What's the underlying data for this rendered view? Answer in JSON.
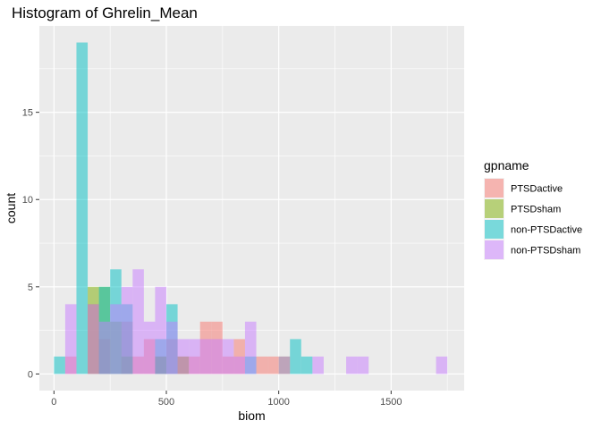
{
  "chart_data": {
    "type": "bar",
    "subtype": "overlapping-histogram",
    "title": "Histogram of Ghrelin_Mean",
    "xlabel": "biom",
    "ylabel": "count",
    "xlim": [
      -65,
      1825
    ],
    "ylim": [
      -0.95,
      19.95
    ],
    "x_ticks": [
      0,
      500,
      1000,
      1500
    ],
    "y_ticks": [
      0,
      5,
      10,
      15
    ],
    "grid": true,
    "bin_width": 50,
    "legend_title": "gpname",
    "legend_position": "right",
    "series": [
      {
        "name": "PTSDactive",
        "color": "#F8766D",
        "bins": [
          {
            "x": 75,
            "count": 1
          },
          {
            "x": 175,
            "count": 4
          },
          {
            "x": 225,
            "count": 2
          },
          {
            "x": 325,
            "count": 3
          },
          {
            "x": 375,
            "count": 1
          },
          {
            "x": 425,
            "count": 2
          },
          {
            "x": 475,
            "count": 1
          },
          {
            "x": 525,
            "count": 2
          },
          {
            "x": 575,
            "count": 1
          },
          {
            "x": 625,
            "count": 1
          },
          {
            "x": 675,
            "count": 3
          },
          {
            "x": 725,
            "count": 3
          },
          {
            "x": 775,
            "count": 1
          },
          {
            "x": 825,
            "count": 2
          },
          {
            "x": 925,
            "count": 1
          },
          {
            "x": 975,
            "count": 1
          }
        ]
      },
      {
        "name": "PTSDsham",
        "color": "#7CAE00",
        "bins": [
          {
            "x": 175,
            "count": 5
          },
          {
            "x": 225,
            "count": 5
          },
          {
            "x": 275,
            "count": 3
          },
          {
            "x": 325,
            "count": 1
          },
          {
            "x": 475,
            "count": 1
          },
          {
            "x": 575,
            "count": 1
          },
          {
            "x": 1025,
            "count": 1
          }
        ]
      },
      {
        "name": "non-PTSDactive",
        "color": "#00BFC4",
        "bins": [
          {
            "x": 25,
            "count": 1
          },
          {
            "x": 125,
            "count": 19
          },
          {
            "x": 225,
            "count": 5
          },
          {
            "x": 275,
            "count": 6
          },
          {
            "x": 325,
            "count": 4
          },
          {
            "x": 475,
            "count": 2
          },
          {
            "x": 525,
            "count": 4
          },
          {
            "x": 875,
            "count": 1
          },
          {
            "x": 1075,
            "count": 2
          },
          {
            "x": 1125,
            "count": 1
          }
        ]
      },
      {
        "name": "non-PTSDsham",
        "color": "#C77CFF",
        "bins": [
          {
            "x": 75,
            "count": 4
          },
          {
            "x": 175,
            "count": 4
          },
          {
            "x": 225,
            "count": 3
          },
          {
            "x": 275,
            "count": 4
          },
          {
            "x": 325,
            "count": 5
          },
          {
            "x": 375,
            "count": 6
          },
          {
            "x": 425,
            "count": 3
          },
          {
            "x": 475,
            "count": 5
          },
          {
            "x": 525,
            "count": 3
          },
          {
            "x": 575,
            "count": 2
          },
          {
            "x": 625,
            "count": 2
          },
          {
            "x": 675,
            "count": 2
          },
          {
            "x": 725,
            "count": 2
          },
          {
            "x": 775,
            "count": 2
          },
          {
            "x": 825,
            "count": 1
          },
          {
            "x": 875,
            "count": 3
          },
          {
            "x": 1025,
            "count": 1
          },
          {
            "x": 1175,
            "count": 1
          },
          {
            "x": 1325,
            "count": 1
          },
          {
            "x": 1375,
            "count": 1
          },
          {
            "x": 1725,
            "count": 1
          }
        ]
      }
    ]
  }
}
